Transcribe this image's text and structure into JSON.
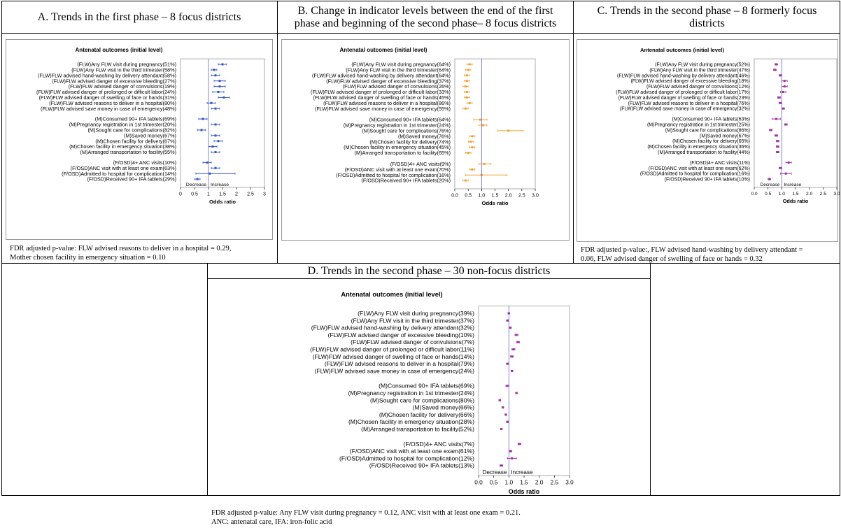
{
  "colors": {
    "A": "#3355cc",
    "B": "#f0a030",
    "C": "#a030a0",
    "D": "#a030a0",
    "ref": "#6666cc"
  },
  "panels": {
    "A": {
      "title": "A. Trends in the first phase – 8 focus districts",
      "note_lines": [
        "FDR adjusted p-value: FLW advised reasons to deliver in a hospital = 0.29,",
        "Mother chosen facility in emergency situation = 0.10"
      ]
    },
    "B": {
      "title_lines": [
        "B. Change in indicator levels between the end of the first",
        "phase and beginning of the second phase– 8 focus districts"
      ]
    },
    "C": {
      "title_lines": [
        "C. Trends in the second phase – 8 formerly focus",
        "districts"
      ],
      "note_lines": [
        "FDR adjusted p-value:, FLW advised hand-washing by delivery attendant =",
        "0.06, FLW advised danger of swelling of face or hands = 0.32"
      ]
    },
    "D": {
      "title": "D. Trends in the second phase – 30 non-focus districts",
      "note_lines": [
        "FDR adjusted p-value: Any FLW visit during pregnancy = 0.12, ANC visit with at least one exam = 0.21.",
        "ANC: antenatal care, IFA: iron-folic acid"
      ]
    }
  },
  "chart_data": [
    {
      "id": "A",
      "type": "forest",
      "title": "Antenatal outcomes (initial level)",
      "xlabel": "Odds ratio",
      "xlim": [
        0,
        3
      ],
      "xticks": [
        0,
        0.5,
        1,
        1.5,
        2,
        2.5,
        3
      ],
      "xtick_labels": [
        "0",
        "0.5",
        "1",
        "1.5",
        "2",
        "2.5",
        "3"
      ],
      "ref": 1,
      "direction_labels": [
        "Decrease",
        "Increase"
      ],
      "groups": [
        {
          "rows": [
            {
              "label": "(FLW)Any FLW visit during pregnancy(51%)",
              "or": 1.5,
              "lo": 1.35,
              "hi": 1.65
            },
            {
              "label": "(FLW)Any FLW visit in the third trimester(58%)",
              "or": 1.2,
              "lo": 1.1,
              "hi": 1.3
            },
            {
              "label": "(FLW)FLW advised hand-washing by delivery attendant(58%)",
              "or": 1.25,
              "lo": 1.1,
              "hi": 1.4
            },
            {
              "label": "(FLW)FLW advised danger of excessive bleeding(27%)",
              "or": 1.4,
              "lo": 1.2,
              "hi": 1.6
            },
            {
              "label": "(FLW)FLW advised danger of convulsions(19%)",
              "or": 1.4,
              "lo": 1.2,
              "hi": 1.6
            },
            {
              "label": "(FLW)FLW advised danger of prolonged or difficult labor(24%)",
              "or": 1.35,
              "lo": 1.15,
              "hi": 1.55
            },
            {
              "label": "(FLW)FLW advised danger of swelling of face or hands(31%)",
              "or": 1.55,
              "lo": 1.35,
              "hi": 1.75
            },
            {
              "label": "(FLW)FLW advised reasons to deliver in a hospital(80%)",
              "or": 1.1,
              "lo": 0.95,
              "hi": 1.25
            },
            {
              "label": "(FLW)FLW advised save money in case of emergency(48%)",
              "or": 1.25,
              "lo": 1.1,
              "hi": 1.4
            }
          ]
        },
        {
          "rows": [
            {
              "label": "(M)Consumed 90+ IFA tablets(69%)",
              "or": 0.8,
              "lo": 0.65,
              "hi": 0.95
            },
            {
              "label": "(M)Pregnancy registration in 1st trimester(20%)",
              "or": 1.25,
              "lo": 1.1,
              "hi": 1.4
            },
            {
              "label": "(M)Sought care for complications(82%)",
              "or": 0.75,
              "lo": 0.6,
              "hi": 0.9
            },
            {
              "label": "(M)Saved money(67%)",
              "or": 1.25,
              "lo": 1.1,
              "hi": 1.4
            },
            {
              "label": "(M)Chosen facility for delivery(67%)",
              "or": 1.35,
              "lo": 1.2,
              "hi": 1.5
            },
            {
              "label": "(M)Chosen facility in emergency situation(38%)",
              "or": 1.15,
              "lo": 1.0,
              "hi": 1.3
            },
            {
              "label": "(M)Arranged transportation to facility(55%)",
              "or": 1.25,
              "lo": 1.1,
              "hi": 1.4
            }
          ]
        },
        {
          "rows": [
            {
              "label": "(F/OSD)4+ ANC visits(10%)",
              "or": 0.95,
              "lo": 0.8,
              "hi": 1.1
            },
            {
              "label": "(F/OSD)ANC visit with at least one exam(63%)",
              "or": 1.25,
              "lo": 1.1,
              "hi": 1.4
            },
            {
              "label": "(F/OSD)Admitted to hospital for complication(14%)",
              "or": 1.05,
              "lo": 0.55,
              "hi": 1.95
            },
            {
              "label": "(F/OSD)Received 90+ IFA tablets(29%)",
              "or": 0.6,
              "lo": 0.5,
              "hi": 0.7
            }
          ]
        }
      ]
    },
    {
      "id": "B",
      "type": "forest",
      "title": "Antenatal outcomes (initial level)",
      "xlabel": "Odds ratio",
      "xlim": [
        0,
        3
      ],
      "xticks": [
        0,
        0.5,
        1,
        1.5,
        2,
        2.5,
        3
      ],
      "xtick_labels": [
        "0.0",
        "0.5",
        "1.0",
        "1.5",
        "2.0",
        "2.5",
        "3.0"
      ],
      "ref": 1,
      "groups": [
        {
          "rows": [
            {
              "label": "(FLW)Any FLW visit during pregnancy(64%)",
              "or": 0.55,
              "lo": 0.45,
              "hi": 0.65
            },
            {
              "label": "(FLW)Any FLW visit in the third trimester(64%)",
              "or": 0.5,
              "lo": 0.4,
              "hi": 0.6
            },
            {
              "label": "(FLW)FLW advised hand-washing by delivery attendant(64%)",
              "or": 0.45,
              "lo": 0.35,
              "hi": 0.55
            },
            {
              "label": "(FLW)FLW advised danger of excessive bleeding(37%)",
              "or": 0.45,
              "lo": 0.35,
              "hi": 0.55
            },
            {
              "label": "(FLW)FLW advised danger of convulsions(26%)",
              "or": 0.4,
              "lo": 0.3,
              "hi": 0.5
            },
            {
              "label": "(FLW)FLW advised danger of prolonged or difficult labor(33%)",
              "or": 0.45,
              "lo": 0.35,
              "hi": 0.55
            },
            {
              "label": "(FLW)FLW advised danger of swelling of face or hands(45%)",
              "or": 0.45,
              "lo": 0.35,
              "hi": 0.55
            },
            {
              "label": "(FLW)FLW advised reasons to deliver in a hospital(86%)",
              "or": 0.55,
              "lo": 0.45,
              "hi": 0.65
            },
            {
              "label": "(FLW)FLW advised save money in case of emergency(55%)",
              "or": 0.4,
              "lo": 0.3,
              "hi": 0.5
            }
          ]
        },
        {
          "rows": [
            {
              "label": "(M)Consumed 90+ IFA tablets(64%)",
              "or": 0.95,
              "lo": 0.7,
              "hi": 1.2
            },
            {
              "label": "(M)Pregnancy registration in 1st trimester(24%)",
              "or": 1.05,
              "lo": 0.9,
              "hi": 1.2
            },
            {
              "label": "(M)Sought care for complications(76%)",
              "or": 2.0,
              "lo": 1.6,
              "hi": 2.55
            },
            {
              "label": "(M)Saved money(76%)",
              "or": 0.65,
              "lo": 0.55,
              "hi": 0.75
            },
            {
              "label": "(M)Chosen facility for delivery(74%)",
              "or": 0.6,
              "lo": 0.5,
              "hi": 0.7
            },
            {
              "label": "(M)Chosen facility in emergency situation(45%)",
              "or": 0.65,
              "lo": 0.55,
              "hi": 0.75
            },
            {
              "label": "(M)Arranged transportation to facility(65%)",
              "or": 0.5,
              "lo": 0.4,
              "hi": 0.6
            }
          ]
        },
        {
          "rows": [
            {
              "label": "(F/OSD)4+ ANC visits(9%)",
              "or": 1.1,
              "lo": 0.9,
              "hi": 1.35
            },
            {
              "label": "(F/OSD)ANC visit with at least one exam(70%)",
              "or": 0.65,
              "lo": 0.55,
              "hi": 0.75
            },
            {
              "label": "(F/OSD)Admitted to hospital for complication(16%)",
              "or": 1.0,
              "lo": 0.4,
              "hi": 1.95
            },
            {
              "label": "(F/OSD)Received 90+ IFA tablets(20%)",
              "or": 0.4,
              "lo": 0.3,
              "hi": 0.5
            }
          ]
        }
      ]
    },
    {
      "id": "C",
      "type": "forest",
      "title": "Antenatal outcomes (initial level)",
      "xlabel": "Odds ratio",
      "xlim": [
        0,
        3
      ],
      "xticks": [
        0,
        0.5,
        1,
        1.5,
        2,
        2.5,
        3
      ],
      "xtick_labels": [
        "0.0",
        "0.5",
        "1.0",
        "1.5",
        "2.0",
        "2.5",
        "3.0"
      ],
      "ref": 1,
      "direction_labels": [
        "Decrease",
        "Increase"
      ],
      "groups": [
        {
          "rows": [
            {
              "label": "(FLW)Any FLW visit during pregnancy(52%)",
              "or": 0.8,
              "lo": 0.75,
              "hi": 0.85
            },
            {
              "label": "(FLW)Any FLW visit in the third trimester(47%)",
              "or": 0.75,
              "lo": 0.7,
              "hi": 0.8
            },
            {
              "label": "(FLW)FLW advised hand-washing by delivery attendant(46%)",
              "or": 0.95,
              "lo": 0.9,
              "hi": 1.0
            },
            {
              "label": "(FLW)FLW advised danger of excessive bleeding(18%)",
              "or": 1.1,
              "lo": 1.0,
              "hi": 1.2
            },
            {
              "label": "(FLW)FLW advised danger of convulsions(12%)",
              "or": 1.1,
              "lo": 1.0,
              "hi": 1.2
            },
            {
              "label": "(FLW)FLW advised danger of prolonged or difficult labor(17%)",
              "or": 1.05,
              "lo": 0.95,
              "hi": 1.15
            },
            {
              "label": "(FLW)FLW advised danger of swelling of face or hands(23%)",
              "or": 0.9,
              "lo": 0.85,
              "hi": 0.95
            },
            {
              "label": "(FLW)FLW advised reasons to deliver in a hospital(76%)",
              "or": 0.95,
              "lo": 0.9,
              "hi": 1.0
            },
            {
              "label": "(FLW)FLW advised save money in case of emergency(32%)",
              "or": 1.05,
              "lo": 1.0,
              "hi": 1.1
            }
          ]
        },
        {
          "rows": [
            {
              "label": "(M)Consumed 90+ IFA tablets(63%)",
              "or": 0.8,
              "lo": 0.65,
              "hi": 0.95
            },
            {
              "label": "(M)Pregnancy registration in 1st trimester(25%)",
              "or": 1.15,
              "lo": 1.1,
              "hi": 1.2
            },
            {
              "label": "(M)Sought care for complications(86%)",
              "or": 0.6,
              "lo": 0.55,
              "hi": 0.65
            },
            {
              "label": "(M)Saved money(67%)",
              "or": 0.8,
              "lo": 0.75,
              "hi": 0.85
            },
            {
              "label": "(M)Chosen facility for delivery(65%)",
              "or": 0.85,
              "lo": 0.8,
              "hi": 0.9
            },
            {
              "label": "(M)Chosen facility in emergency situation(36%)",
              "or": 0.85,
              "lo": 0.8,
              "hi": 0.9
            },
            {
              "label": "(M)Arranged transportation to facility(44%)",
              "or": 0.85,
              "lo": 0.8,
              "hi": 0.9
            }
          ]
        },
        {
          "rows": [
            {
              "label": "(F/OSD)4+ ANC visits(11%)",
              "or": 1.25,
              "lo": 1.15,
              "hi": 1.35
            },
            {
              "label": "(F/OSD)ANC visit with at least one exam(62%)",
              "or": 0.95,
              "lo": 0.9,
              "hi": 1.0
            },
            {
              "label": "(F/OSD)Admitted to hospital for complication(16%)",
              "or": 1.15,
              "lo": 0.95,
              "hi": 1.35
            },
            {
              "label": "(F/OSD)Received 90+ IFA tablets(10%)",
              "or": 0.55,
              "lo": 0.5,
              "hi": 0.6
            }
          ]
        }
      ]
    },
    {
      "id": "D",
      "type": "forest",
      "title": "Antenatal outcomes (initial level)",
      "xlabel": "Odds ratio",
      "xlim": [
        0,
        3
      ],
      "xticks": [
        0,
        0.5,
        1,
        1.5,
        2,
        2.5,
        3
      ],
      "xtick_labels": [
        "0.0",
        "0.5",
        "1.0",
        "1.5",
        "2.0",
        "2.5",
        "3.0"
      ],
      "ref": 1,
      "direction_labels": [
        "Decrease",
        "Increase"
      ],
      "groups": [
        {
          "rows": [
            {
              "label": "(FLW)Any FLW visit during pregnancy(39%)",
              "or": 1.0,
              "lo": 0.97,
              "hi": 1.03
            },
            {
              "label": "(FLW)Any FLW visit in the third trimester(37%)",
              "or": 0.95,
              "lo": 0.92,
              "hi": 0.98
            },
            {
              "label": "(FLW)FLW advised hand-washing by delivery attendant(32%)",
              "or": 1.05,
              "lo": 1.02,
              "hi": 1.08
            },
            {
              "label": "(FLW)FLW advised danger of excessive bleeding(10%)",
              "or": 1.25,
              "lo": 1.2,
              "hi": 1.3
            },
            {
              "label": "(FLW)FLW advised danger of convulsions(7%)",
              "or": 1.3,
              "lo": 1.25,
              "hi": 1.35
            },
            {
              "label": "(FLW)FLW advised danger of prolonged or difficult labor(11%)",
              "or": 1.15,
              "lo": 1.1,
              "hi": 1.2
            },
            {
              "label": "(FLW)FLW advised danger of swelling of face or hands(14%)",
              "or": 1.1,
              "lo": 1.05,
              "hi": 1.15
            },
            {
              "label": "(FLW)FLW advised reasons to deliver in a hospital(79%)",
              "or": 0.95,
              "lo": 0.92,
              "hi": 0.98
            },
            {
              "label": "(FLW)FLW advised save money in case of emergency(24%)",
              "or": 1.1,
              "lo": 1.07,
              "hi": 1.13
            }
          ]
        },
        {
          "rows": [
            {
              "label": "(M)Consumed 90+ IFA tablets(69%)",
              "or": 0.95,
              "lo": 0.9,
              "hi": 1.0
            },
            {
              "label": "(M)Pregnancy registration in 1st trimester(24%)",
              "or": 1.25,
              "lo": 1.22,
              "hi": 1.28
            },
            {
              "label": "(M)Sought care for complications(80%)",
              "or": 0.7,
              "lo": 0.67,
              "hi": 0.73
            },
            {
              "label": "(M)Saved money(66%)",
              "or": 0.8,
              "lo": 0.77,
              "hi": 0.83
            },
            {
              "label": "(M)Chosen facility for delivery(66%)",
              "or": 0.9,
              "lo": 0.87,
              "hi": 0.93
            },
            {
              "label": "(M)Chosen facility in emergency situation(28%)",
              "or": 0.95,
              "lo": 0.92,
              "hi": 0.98
            },
            {
              "label": "(M)Arranged transportation to facility(52%)",
              "or": 0.75,
              "lo": 0.72,
              "hi": 0.78
            }
          ]
        },
        {
          "rows": [
            {
              "label": "(F/OSD)4+ ANC visits(7%)",
              "or": 1.35,
              "lo": 1.3,
              "hi": 1.4
            },
            {
              "label": "(F/OSD)ANC visit with at least one exam(61%)",
              "or": 1.05,
              "lo": 1.0,
              "hi": 1.1
            },
            {
              "label": "(F/OSD)Admitted to hospital for complication(12%)",
              "or": 1.1,
              "lo": 0.95,
              "hi": 1.25
            },
            {
              "label": "(F/OSD)Received 90+ IFA tablets(13%)",
              "or": 0.75,
              "lo": 0.7,
              "hi": 0.8
            }
          ]
        }
      ]
    }
  ]
}
